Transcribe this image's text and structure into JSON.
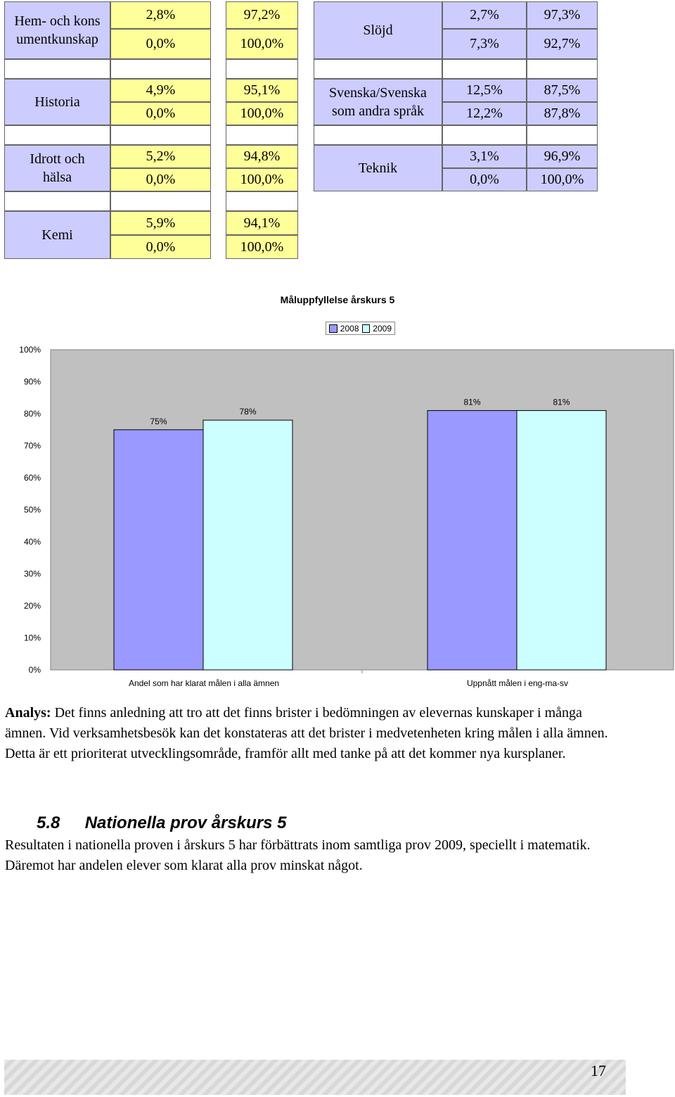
{
  "table": {
    "rows": [
      {
        "subject": "Hem- och konsumentkunskap",
        "v1a": "2,8%",
        "v1b": "0,0%",
        "v2a": "97,2%",
        "v2b": "100,0%"
      },
      {
        "subject": "Historia",
        "v1a": "4,9%",
        "v1b": "0,0%",
        "v2a": "95,1%",
        "v2b": "100,0%"
      },
      {
        "subject": "Idrott och hälsa",
        "v1a": "5,2%",
        "v1b": "0,0%",
        "v2a": "94,8%",
        "v2b": "100,0%"
      },
      {
        "subject": "Kemi",
        "v1a": "5,9%",
        "v1b": "0,0%",
        "v2a": "94,1%",
        "v2b": "100,0%"
      }
    ],
    "rows_right": [
      {
        "subject": "Slöjd",
        "v1a": "2,7%",
        "v1b": "7,3%",
        "v2a": "97,3%",
        "v2b": "92,7%"
      },
      {
        "subject": "Svenska/Svenska som andra språk",
        "v1a": "12,5%",
        "v1b": "12,2%",
        "v2a": "87,5%",
        "v2b": "87,8%"
      },
      {
        "subject": "Teknik",
        "v1a": "3,1%",
        "v1b": "0,0%",
        "v2a": "96,9%",
        "v2b": "100,0%"
      }
    ]
  },
  "chart_data": {
    "type": "bar",
    "title": "Måluppfyllelse årskurs 5",
    "categories": [
      "Andel som har klarat målen i alla ämnen",
      "Uppnått målen i eng-ma-sv"
    ],
    "series": [
      {
        "name": "2008",
        "values": [
          75,
          81
        ],
        "color": "#9999ff"
      },
      {
        "name": "2009",
        "values": [
          78,
          81
        ],
        "color": "#ccffff"
      }
    ],
    "data_labels": [
      [
        "75%",
        "81%"
      ],
      [
        "78%",
        "81%"
      ]
    ],
    "ylim": [
      0,
      100
    ],
    "y_ticks": [
      "0%",
      "10%",
      "20%",
      "30%",
      "40%",
      "50%",
      "60%",
      "70%",
      "80%",
      "90%",
      "100%"
    ],
    "legend_position": "top",
    "plot_background": "#c0c0c0"
  },
  "analysis": {
    "label": "Analys:",
    "text": " Det finns anledning att tro att det finns brister i bedömningen av elevernas kunskaper i många ämnen. Vid verksamhetsbesök kan det konstateras att det brister i medvetenheten kring målen i alla ämnen. Detta är ett prioriterat utvecklingsområde, framför allt med tanke på att det kommer nya kursplaner."
  },
  "section": {
    "number": "5.8",
    "title": "Nationella prov årskurs 5",
    "text": "Resultaten i nationella proven i årskurs 5 har förbättrats inom samtliga prov 2009, speciellt i matematik. Däremot har andelen elever som klarat alla prov minskat något."
  },
  "footer": {
    "page_number": "17"
  }
}
